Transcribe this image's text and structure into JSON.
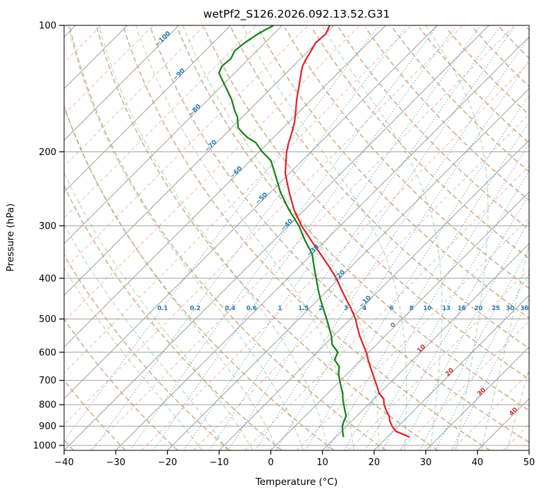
{
  "title": "wetPf2_S126.2026.092.13.52.G31",
  "axes": {
    "x_label": "Temperature (°C)",
    "y_label": "Pressure (hPa)",
    "x_tick_labels": [
      "−40",
      "−30",
      "−20",
      "−10",
      "0",
      "10",
      "20",
      "30",
      "40",
      "50"
    ],
    "y_tick_labels": [
      "100",
      "200",
      "300",
      "400",
      "500",
      "600",
      "700",
      "800",
      "900",
      "1000"
    ]
  },
  "chart_data": {
    "type": "line",
    "variant": "skew_t_log_p",
    "title": "wetPf2_S126.2026.092.13.52.G31",
    "x_axis": {
      "label": "Temperature (°C)",
      "min_c": -40,
      "max_c": 50,
      "ticks_c": [
        -40,
        -30,
        -20,
        -10,
        0,
        10,
        20,
        30,
        40,
        50
      ]
    },
    "y_axis": {
      "label": "Pressure (hPa)",
      "scale": "log",
      "top_hpa": 100,
      "bottom_hpa": 1027,
      "ticks_hpa": [
        100,
        200,
        300,
        400,
        500,
        600,
        700,
        800,
        900,
        1000
      ]
    },
    "skew_deg": 45,
    "isobars": {
      "values_hpa": [
        100,
        200,
        300,
        400,
        500,
        600,
        700,
        800,
        900,
        1000
      ],
      "color": "#a0a0a0"
    },
    "isotherms": {
      "start_c": -160,
      "end_c": 50,
      "step_c": 10,
      "color": "#a0a0a0",
      "style": "solid"
    },
    "offset_isotherms": {
      "start_c": -155,
      "end_c": 45,
      "step_c": 10,
      "color": "rgba(240,128,128,0.6)",
      "style": "dashed"
    },
    "isotherm_labels": {
      "values_c": [
        -100,
        -90,
        -80,
        -70,
        -60,
        -50,
        -40,
        -30,
        -20,
        -10,
        0,
        10,
        20,
        30,
        40
      ],
      "negative_color": "#2779b0",
      "zero_color": "#7f7f7f",
      "positive_color": "#cc3333"
    },
    "dry_adiabats": {
      "theta_start_c": -40,
      "theta_end_c": 190,
      "step_c": 10,
      "color": "rgba(197,165,122,0.85)",
      "style": "dashed"
    },
    "moist_adiabats": {
      "start_temps_c": [
        -15,
        -10,
        -5,
        0,
        5,
        10,
        15,
        20,
        25,
        30,
        35,
        40,
        45
      ],
      "color": "rgba(44,160,44,0.33)",
      "style": "dashed"
    },
    "mixing_ratio_lines": {
      "values_g_kg": [
        0.1,
        0.2,
        0.4,
        0.6,
        1,
        1.5,
        2,
        3,
        4,
        6,
        8,
        10,
        13,
        16,
        20,
        25,
        30,
        36
      ],
      "color": "rgba(47,118,181,0.75)",
      "label_color": "#2779b0",
      "style": "dotted",
      "label_pressure_hpa": 471
    },
    "series": [
      {
        "name": "temperature",
        "color": "#e02127",
        "points_p_hpa_t_c": [
          [
            955,
            24.3
          ],
          [
            925,
            20.5
          ],
          [
            900,
            18.8
          ],
          [
            875,
            17.4
          ],
          [
            850,
            16.2
          ],
          [
            825,
            14.6
          ],
          [
            800,
            13.1
          ],
          [
            775,
            11.9
          ],
          [
            750,
            9.8
          ],
          [
            725,
            8.3
          ],
          [
            700,
            6.6
          ],
          [
            675,
            4.9
          ],
          [
            650,
            3.1
          ],
          [
            625,
            1.3
          ],
          [
            600,
            -0.5
          ],
          [
            575,
            -2.6
          ],
          [
            550,
            -4.8
          ],
          [
            525,
            -6.9
          ],
          [
            500,
            -9.0
          ],
          [
            475,
            -11.6
          ],
          [
            450,
            -14.5
          ],
          [
            425,
            -17.5
          ],
          [
            400,
            -20.6
          ],
          [
            375,
            -24.3
          ],
          [
            350,
            -28.4
          ],
          [
            325,
            -32.8
          ],
          [
            300,
            -37.5
          ],
          [
            275,
            -42.0
          ],
          [
            250,
            -46.3
          ],
          [
            225,
            -50.8
          ],
          [
            200,
            -54.7
          ],
          [
            190,
            -56.1
          ],
          [
            180,
            -57.4
          ],
          [
            170,
            -58.9
          ],
          [
            160,
            -60.8
          ],
          [
            150,
            -62.9
          ],
          [
            140,
            -64.9
          ],
          [
            130,
            -67.1
          ],
          [
            125,
            -68.2
          ],
          [
            120,
            -68.9
          ],
          [
            115,
            -69.5
          ],
          [
            110,
            -70.2
          ],
          [
            105,
            -69.9
          ],
          [
            100,
            -70.8
          ]
        ]
      },
      {
        "name": "dewpoint",
        "color": "#157f15",
        "points_p_hpa_t_c": [
          [
            955,
            11.5
          ],
          [
            925,
            10.2
          ],
          [
            900,
            9.2
          ],
          [
            875,
            8.5
          ],
          [
            850,
            7.9
          ],
          [
            825,
            6.6
          ],
          [
            800,
            5.3
          ],
          [
            775,
            4.0
          ],
          [
            750,
            2.8
          ],
          [
            725,
            1.3
          ],
          [
            700,
            -0.2
          ],
          [
            675,
            -1.7
          ],
          [
            650,
            -2.9
          ],
          [
            625,
            -5.2
          ],
          [
            600,
            -6.0
          ],
          [
            575,
            -8.6
          ],
          [
            550,
            -10.3
          ],
          [
            525,
            -12.4
          ],
          [
            500,
            -14.6
          ],
          [
            475,
            -17.0
          ],
          [
            450,
            -19.5
          ],
          [
            425,
            -22.0
          ],
          [
            400,
            -24.5
          ],
          [
            375,
            -27.2
          ],
          [
            350,
            -30.0
          ],
          [
            325,
            -34.0
          ],
          [
            300,
            -38.0
          ],
          [
            275,
            -43.0
          ],
          [
            250,
            -48.0
          ],
          [
            225,
            -52.8
          ],
          [
            210,
            -56.0
          ],
          [
            200,
            -59.4
          ],
          [
            190,
            -62.5
          ],
          [
            185,
            -65.0
          ],
          [
            180,
            -67.0
          ],
          [
            175,
            -68.8
          ],
          [
            165,
            -71.0
          ],
          [
            160,
            -72.6
          ],
          [
            150,
            -75.5
          ],
          [
            140,
            -79.1
          ],
          [
            130,
            -83.0
          ],
          [
            125,
            -83.8
          ],
          [
            120,
            -83.5
          ],
          [
            115,
            -84.3
          ],
          [
            110,
            -83.9
          ],
          [
            105,
            -83.1
          ],
          [
            100,
            -81.7
          ]
        ]
      }
    ]
  }
}
